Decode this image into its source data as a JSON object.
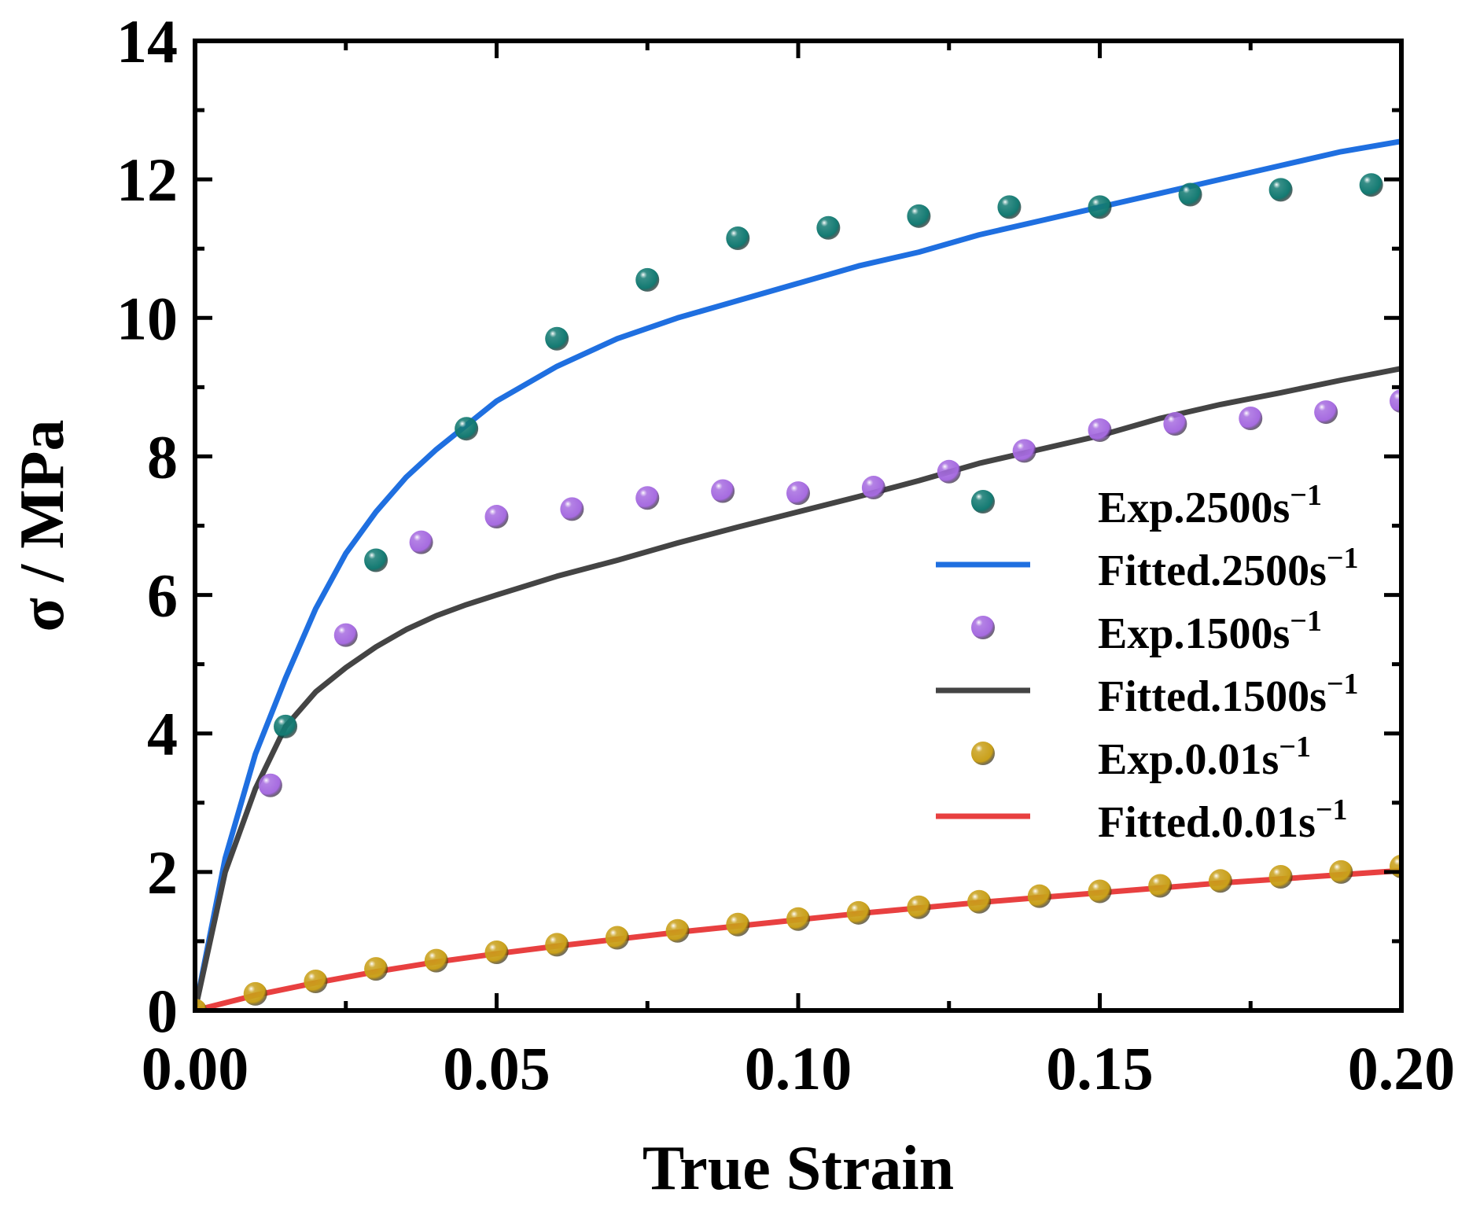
{
  "chart_data": {
    "type": "scatter",
    "title": "",
    "xlabel": "True Strain",
    "ylabel": "σ / MPa",
    "xlim": [
      0,
      0.2
    ],
    "ylim": [
      0,
      14
    ],
    "xticks": [
      0,
      0.05,
      0.1,
      0.15,
      0.2
    ],
    "xtick_labels": [
      "0.00",
      "0.05",
      "0.10",
      "0.15",
      "0.20"
    ],
    "yticks": [
      0,
      2,
      4,
      6,
      8,
      10,
      12,
      14
    ],
    "ytick_labels": [
      "0",
      "2",
      "4",
      "6",
      "8",
      "10",
      "12",
      "14"
    ],
    "grid": false,
    "legend_position": "center-right",
    "series": [
      {
        "name": "Exp.2500s",
        "name_superscript": "−1",
        "kind": "scatter",
        "color": "#137a72",
        "x": [
          0.015,
          0.03,
          0.045,
          0.06,
          0.075,
          0.09,
          0.105,
          0.12,
          0.135,
          0.15,
          0.165,
          0.18,
          0.195
        ],
        "y": [
          4.1,
          6.5,
          8.4,
          9.7,
          10.55,
          11.15,
          11.3,
          11.47,
          11.6,
          11.6,
          11.78,
          11.85,
          11.92
        ]
      },
      {
        "name": "Fitted.2500s",
        "name_superscript": "−1",
        "kind": "line",
        "color": "#1f6fe0",
        "x": [
          0,
          0.005,
          0.01,
          0.015,
          0.02,
          0.025,
          0.03,
          0.035,
          0.04,
          0.045,
          0.05,
          0.06,
          0.07,
          0.08,
          0.09,
          0.1,
          0.11,
          0.12,
          0.13,
          0.14,
          0.15,
          0.16,
          0.17,
          0.18,
          0.19,
          0.2
        ],
        "y": [
          0,
          2.2,
          3.7,
          4.8,
          5.8,
          6.6,
          7.2,
          7.7,
          8.1,
          8.45,
          8.8,
          9.3,
          9.7,
          10.0,
          10.25,
          10.5,
          10.75,
          10.95,
          11.2,
          11.4,
          11.6,
          11.8,
          12.0,
          12.2,
          12.4,
          12.55
        ]
      },
      {
        "name": "Exp.1500s",
        "name_superscript": "−1",
        "kind": "scatter",
        "color": "#a66be0",
        "x": [
          0.0125,
          0.025,
          0.0375,
          0.05,
          0.0625,
          0.075,
          0.0875,
          0.1,
          0.1125,
          0.125,
          0.1375,
          0.15,
          0.1625,
          0.175,
          0.1875,
          0.2
        ],
        "y": [
          3.25,
          5.42,
          6.76,
          7.13,
          7.24,
          7.4,
          7.5,
          7.47,
          7.55,
          7.78,
          8.08,
          8.38,
          8.47,
          8.55,
          8.64,
          8.8
        ]
      },
      {
        "name": "Fitted.1500s",
        "name_superscript": "−1",
        "kind": "line",
        "color": "#444444",
        "x": [
          0,
          0.005,
          0.01,
          0.015,
          0.02,
          0.025,
          0.03,
          0.035,
          0.04,
          0.045,
          0.05,
          0.06,
          0.07,
          0.08,
          0.09,
          0.1,
          0.11,
          0.12,
          0.13,
          0.14,
          0.15,
          0.16,
          0.17,
          0.18,
          0.19,
          0.2
        ],
        "y": [
          0,
          2.0,
          3.2,
          4.1,
          4.6,
          4.95,
          5.25,
          5.5,
          5.7,
          5.86,
          6.0,
          6.27,
          6.5,
          6.75,
          6.98,
          7.2,
          7.42,
          7.65,
          7.9,
          8.1,
          8.3,
          8.55,
          8.75,
          8.92,
          9.1,
          9.27
        ]
      },
      {
        "name": "Exp.0.01s",
        "name_superscript": "−1",
        "kind": "scatter",
        "color": "#c9a01a",
        "x": [
          0,
          0.01,
          0.02,
          0.03,
          0.04,
          0.05,
          0.06,
          0.07,
          0.08,
          0.09,
          0.1,
          0.11,
          0.12,
          0.13,
          0.14,
          0.15,
          0.16,
          0.17,
          0.18,
          0.19,
          0.2
        ],
        "y": [
          0.0,
          0.24,
          0.42,
          0.6,
          0.72,
          0.84,
          0.95,
          1.05,
          1.15,
          1.24,
          1.32,
          1.41,
          1.49,
          1.57,
          1.65,
          1.72,
          1.8,
          1.87,
          1.93,
          2.0,
          2.08
        ]
      },
      {
        "name": "Fitted.0.01s",
        "name_superscript": "−1",
        "kind": "line",
        "color": "#e84040",
        "x": [
          0,
          0.01,
          0.02,
          0.03,
          0.04,
          0.05,
          0.06,
          0.07,
          0.08,
          0.09,
          0.1,
          0.11,
          0.12,
          0.13,
          0.14,
          0.15,
          0.16,
          0.17,
          0.18,
          0.19,
          0.2
        ],
        "y": [
          0.0,
          0.22,
          0.4,
          0.56,
          0.7,
          0.82,
          0.93,
          1.03,
          1.13,
          1.22,
          1.31,
          1.4,
          1.48,
          1.56,
          1.63,
          1.7,
          1.77,
          1.84,
          1.9,
          1.96,
          2.02
        ]
      }
    ]
  }
}
